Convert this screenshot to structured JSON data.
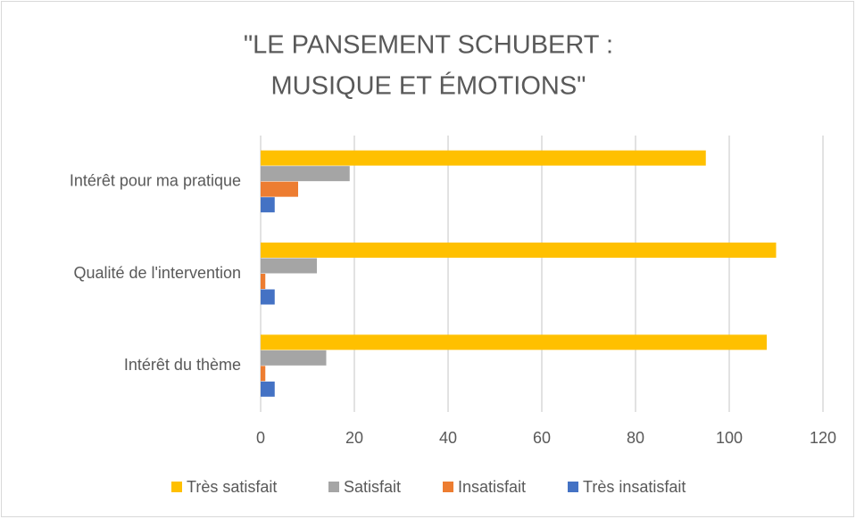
{
  "chart_data": {
    "type": "bar",
    "orientation": "horizontal",
    "title": [
      "\"LE PANSEMENT SCHUBERT :",
      "MUSIQUE ET ÉMOTIONS\""
    ],
    "categories": [
      "Intérêt pour ma pratique",
      "Qualité de l'intervention",
      "Intérêt du thème"
    ],
    "series": [
      {
        "name": "Très satisfait",
        "color": "#ffc000",
        "values": [
          95,
          110,
          108
        ]
      },
      {
        "name": "Satisfait",
        "color": "#a5a5a5",
        "values": [
          19,
          12,
          14
        ]
      },
      {
        "name": "Insatisfait",
        "color": "#ed7d31",
        "values": [
          8,
          1,
          1
        ]
      },
      {
        "name": "Très insatisfait",
        "color": "#4472c4",
        "values": [
          3,
          3,
          3
        ]
      }
    ],
    "xlim": [
      0,
      120
    ],
    "xticks": [
      0,
      20,
      40,
      60,
      80,
      100,
      120
    ],
    "grid": true,
    "legend": "bottom"
  }
}
